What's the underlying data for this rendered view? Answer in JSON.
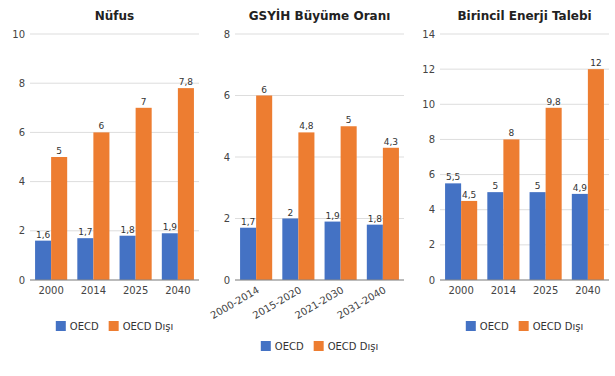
{
  "chart_data": [
    {
      "type": "bar",
      "title": "Nüfus",
      "categories": [
        "2000",
        "2014",
        "2025",
        "2040"
      ],
      "series": [
        {
          "name": "OECD",
          "color": "#4472C4",
          "values": [
            1.6,
            1.7,
            1.8,
            1.9
          ],
          "value_labels": [
            "1,6",
            "1,7",
            "1,8",
            "1,9"
          ]
        },
        {
          "name": "OECD Dışı",
          "color": "#ED7D31",
          "values": [
            5.0,
            6.0,
            7.0,
            7.8
          ],
          "value_labels": [
            "5",
            "6",
            "7",
            "7,8"
          ]
        }
      ],
      "ylim": [
        0,
        10
      ],
      "yticks": [
        0,
        2,
        4,
        6,
        8,
        10
      ],
      "grid": true,
      "data_labels": true,
      "legend": "bottom"
    },
    {
      "type": "bar",
      "title": "GSYİH Büyüme Oranı",
      "categories": [
        "2000-2014",
        "2015-2020",
        "2021-2030",
        "2031-2040"
      ],
      "series": [
        {
          "name": "OECD",
          "color": "#4472C4",
          "values": [
            1.7,
            2.0,
            1.9,
            1.8
          ],
          "value_labels": [
            "1,7",
            "2",
            "1,9",
            "1,8"
          ]
        },
        {
          "name": "OECD Dışı",
          "color": "#ED7D31",
          "values": [
            6.0,
            4.8,
            5.0,
            4.3
          ],
          "value_labels": [
            "6",
            "4,8",
            "5",
            "4,3"
          ]
        }
      ],
      "ylim": [
        0,
        8
      ],
      "yticks": [
        0,
        2,
        4,
        6,
        8
      ],
      "grid": true,
      "data_labels": true,
      "legend": "bottom"
    },
    {
      "type": "bar",
      "title": "Birincil Enerji Talebi",
      "categories": [
        "2000",
        "2014",
        "2025",
        "2040"
      ],
      "series": [
        {
          "name": "OECD",
          "color": "#4472C4",
          "values": [
            5.5,
            5.0,
            5.0,
            4.9
          ],
          "value_labels": [
            "5,5",
            "5",
            "5",
            "4,9"
          ]
        },
        {
          "name": "OECD Dışı",
          "color": "#ED7D31",
          "values": [
            4.5,
            8.0,
            9.8,
            12.0
          ],
          "value_labels": [
            "4,5",
            "8",
            "9,8",
            "12"
          ]
        }
      ],
      "ylim": [
        0,
        14
      ],
      "yticks": [
        0,
        2,
        4,
        6,
        8,
        10,
        12,
        14
      ],
      "grid": true,
      "data_labels": true,
      "legend": "bottom"
    }
  ]
}
